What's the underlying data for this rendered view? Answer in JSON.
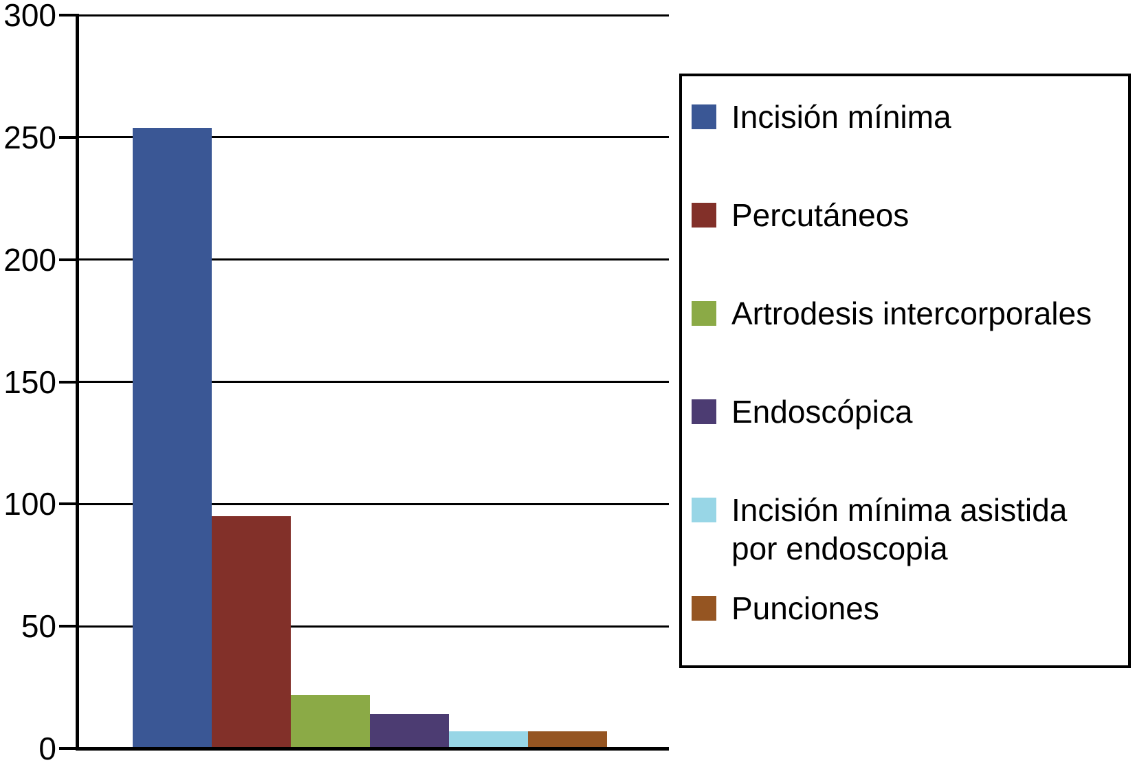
{
  "chart_data": {
    "type": "bar",
    "title": "",
    "xlabel": "",
    "ylabel": "",
    "categories": [
      "Incisión mínima",
      "Percutáneos",
      "Artrodesis intercorporales",
      "Endoscópica",
      "Incisión mínima asistida por endoscopia",
      "Punciones"
    ],
    "values": [
      254,
      95,
      22,
      14,
      7,
      7
    ],
    "colors": [
      "#3A5795",
      "#823029",
      "#8BAA46",
      "#4C3C72",
      "#98D6E6",
      "#955522"
    ],
    "ylim": [
      0,
      300
    ],
    "ytick_interval": 50,
    "ytick_labels": [
      "0",
      "50",
      "100",
      "150",
      "200",
      "250",
      "300"
    ],
    "grid": true,
    "grid_color": "#000000",
    "axis_color": "#000000",
    "legend_position": "right",
    "legend_items": [
      {
        "label": "Incisión mínima",
        "color": "#3A5795"
      },
      {
        "label": "Percutáneos",
        "color": "#823029"
      },
      {
        "label": "Artrodesis intercorporales",
        "color": "#8BAA46"
      },
      {
        "label": "Endoscópica",
        "color": "#4C3C72"
      },
      {
        "label": "Incisión mínima asistida por endoscopia",
        "color": "#98D6E6"
      },
      {
        "label": "Punciones",
        "color": "#955522"
      }
    ]
  }
}
